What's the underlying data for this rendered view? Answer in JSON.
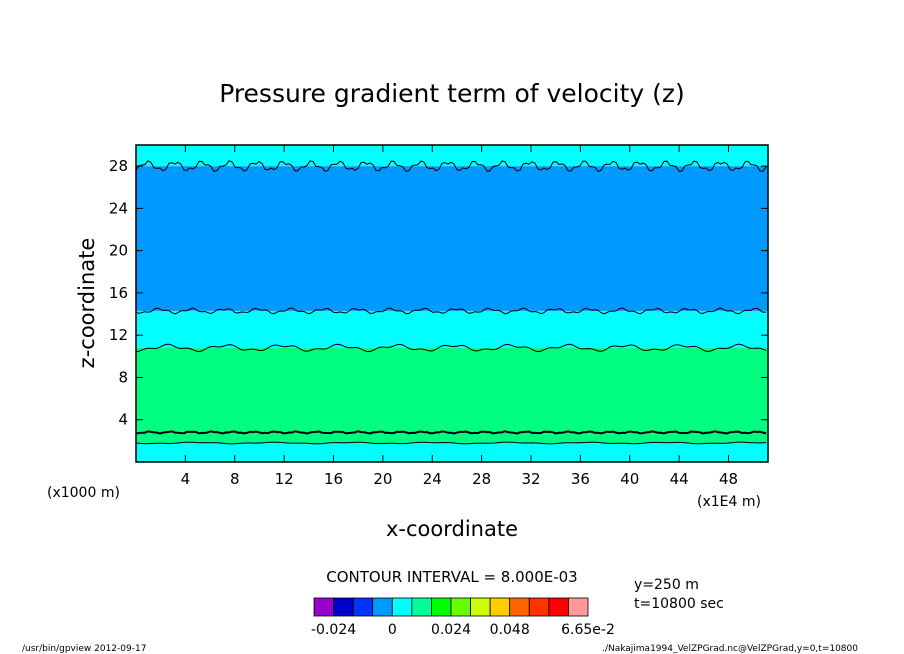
{
  "chart_data": {
    "type": "heatmap",
    "title": "Pressure gradient term of velocity (z)",
    "xlabel": "x-coordinate",
    "ylabel": "z-coordinate",
    "x_unit_left": "(x1000 m)",
    "x_unit_right": "(x1E4 m)",
    "x_ticks": [
      "4",
      "8",
      "12",
      "16",
      "20",
      "24",
      "28",
      "32",
      "36",
      "40",
      "44",
      "48"
    ],
    "x_tick_values": [
      4,
      8,
      12,
      16,
      20,
      24,
      28,
      32,
      36,
      40,
      44,
      48
    ],
    "y_ticks": [
      "4",
      "8",
      "12",
      "16",
      "20",
      "24",
      "28"
    ],
    "y_tick_values": [
      4,
      8,
      12,
      16,
      20,
      24,
      28
    ],
    "xlim": [
      0,
      51.2
    ],
    "ylim": [
      0,
      30
    ],
    "contour_interval": "CONTOUR INTERVAL = 8.000E-03",
    "info_y": "y=250  m",
    "info_t": "t=10800 sec",
    "bands": [
      {
        "z0": 0.0,
        "z1": 1.8,
        "color": "#00ffff"
      },
      {
        "z0": 1.8,
        "z1": 10.8,
        "color": "#00ff80"
      },
      {
        "z0": 10.8,
        "z1": 14.3,
        "color": "#00ffff"
      },
      {
        "z0": 14.3,
        "z1": 28.0,
        "color": "#0099ff"
      },
      {
        "z0": 28.0,
        "z1": 30.0,
        "color": "#00ffff"
      }
    ],
    "colorbar": {
      "colors": [
        "#9900cc",
        "#0000cc",
        "#0033ff",
        "#0099ff",
        "#00ffff",
        "#00ff99",
        "#00ff00",
        "#66ff00",
        "#ccff00",
        "#ffcc00",
        "#ff6600",
        "#ff3300",
        "#ff0000",
        "#ff9999"
      ],
      "labels": [
        "-0.024",
        "0",
        "0.024",
        "0.048",
        "6.65e-2"
      ],
      "label_index": [
        1,
        4,
        7,
        10,
        14
      ]
    },
    "footer_left": "/usr/bin/gpview   2012-09-17",
    "footer_right": "./Nakajima1994_VelZPGrad.nc@VelZPGrad,y=0,t=10800"
  }
}
